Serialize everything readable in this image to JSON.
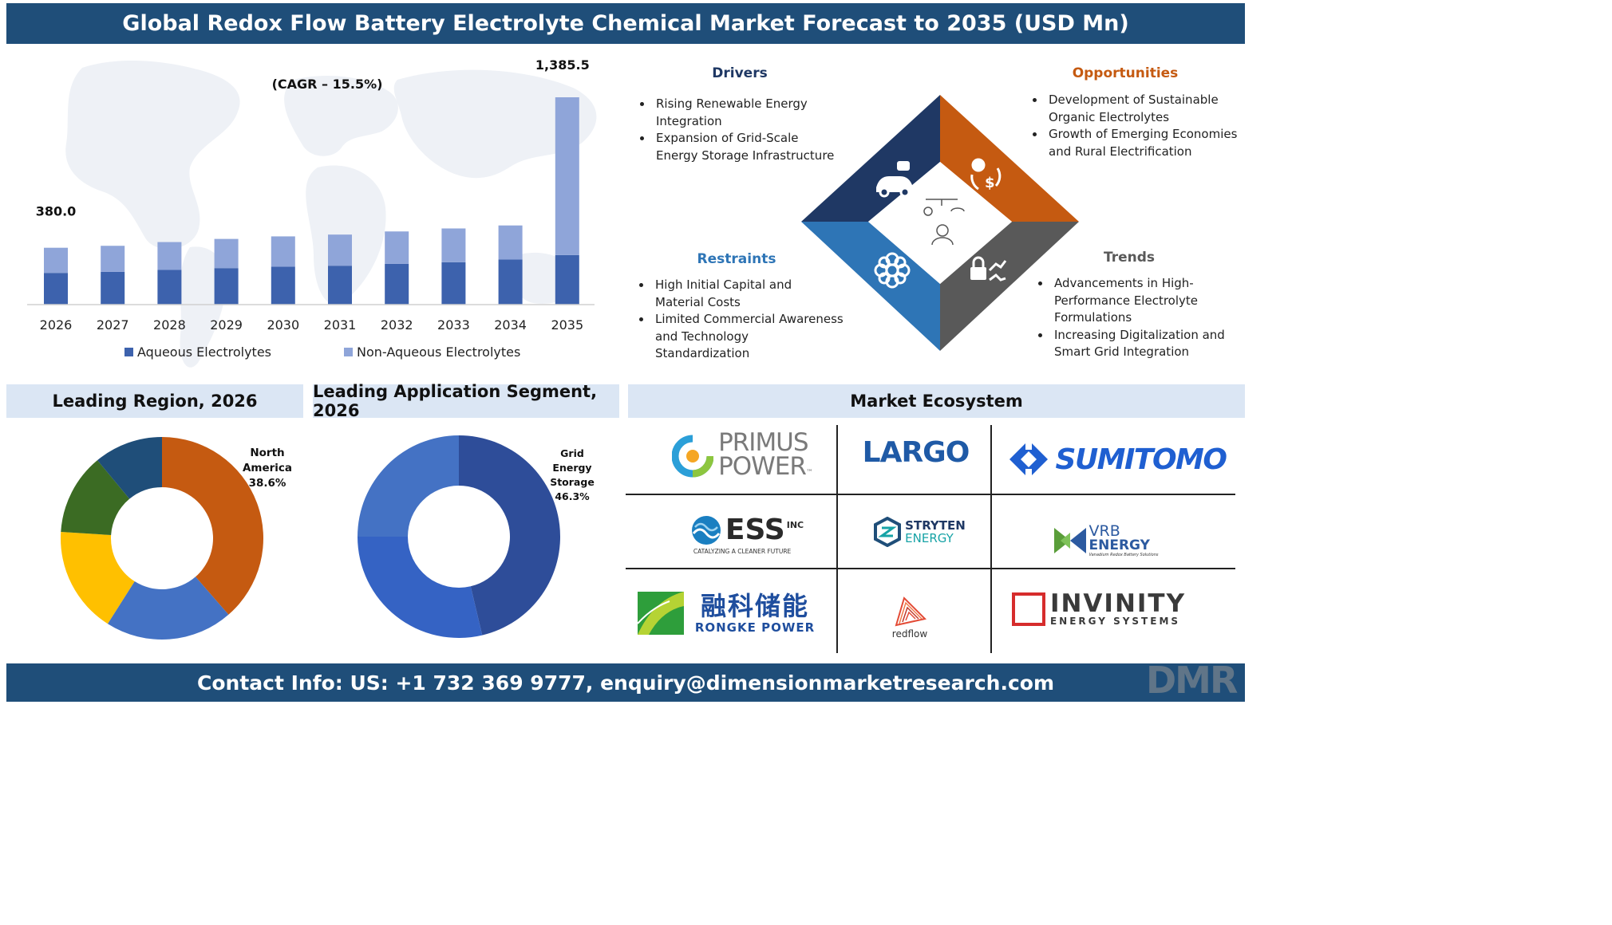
{
  "header": {
    "title": "Global Redox Flow Battery Electrolyte Chemical Market Forecast to 2035 (USD Mn)"
  },
  "chart_data": [
    {
      "type": "bar",
      "stacked": true,
      "categories": [
        "2026",
        "2027",
        "2028",
        "2029",
        "2030",
        "2031",
        "2032",
        "2033",
        "2034",
        "2035"
      ],
      "series": [
        {
          "name": "Aqueous Electrolytes",
          "color": "#3d62ad",
          "values": [
            212.0,
            219.0,
            232.0,
            244.0,
            253.0,
            260.0,
            272.0,
            283.0,
            301.0,
            331.0
          ]
        },
        {
          "name": "Non-Aqueous Electrolytes",
          "color": "#8fa5d9",
          "values": [
            168.0,
            174.0,
            186.0,
            195.0,
            203.0,
            208.0,
            217.0,
            226.0,
            228.0,
            1054.5
          ]
        }
      ],
      "annotations": {
        "first_total": "380.0",
        "last_total": "1,385.5",
        "cagr": "(CAGR – 15.5%)"
      },
      "legend": "bottom"
    },
    {
      "type": "pie",
      "variant": "donut",
      "title": "Leading Region, 2026",
      "slices": [
        {
          "label": "North America",
          "value": 38.6,
          "color": "#c55a11"
        },
        {
          "label": "",
          "value": 20.4,
          "color": "#4472c4"
        },
        {
          "label": "",
          "value": 17.0,
          "color": "#ffc000"
        },
        {
          "label": "",
          "value": 13.0,
          "color": "#3b6b23"
        },
        {
          "label": "",
          "value": 11.0,
          "color": "#1f4e79"
        }
      ],
      "callout": {
        "line1": "North",
        "line2": "America",
        "value": "38.6%"
      }
    },
    {
      "type": "pie",
      "variant": "donut",
      "title": "Leading Application Segment, 2026",
      "slices": [
        {
          "label": "Grid Energy Storage",
          "value": 46.3,
          "color": "#2e4d99"
        },
        {
          "label": "",
          "value": 28.7,
          "color": "#3563c4"
        },
        {
          "label": "",
          "value": 25.0,
          "color": "#4472c4"
        }
      ],
      "callout": {
        "line1": "Grid",
        "line2": "Energy",
        "line3": "Storage",
        "value": "46.3%"
      }
    }
  ],
  "panels": {
    "drivers": {
      "title": "Drivers",
      "color": "#1f3864",
      "items": [
        "Rising Renewable Energy Integration",
        "Expansion of Grid-Scale Energy Storage Infrastructure"
      ]
    },
    "opportunities": {
      "title": "Opportunities",
      "color": "#c55a11",
      "items": [
        "Development of Sustainable Organic Electrolytes",
        "Growth of Emerging Economies and Rural Electrification"
      ]
    },
    "restraints": {
      "title": "Restraints",
      "color": "#2e75b6",
      "items": [
        "High Initial Capital and Material Costs",
        "Limited Commercial Awareness and Technology Standardization"
      ]
    },
    "trends": {
      "title": "Trends",
      "color": "#595959",
      "items": [
        "Advancements in High-Performance Electrolyte Formulations",
        "Increasing Digitalization and Smart Grid Integration"
      ]
    },
    "diamond_icons": [
      "car-robot-icon",
      "idea-dollar-cycle-icon",
      "gear-flower-icon",
      "lock-trend-icon",
      "person-lamp-icon"
    ]
  },
  "sections": {
    "region": "Leading Region, 2026",
    "application": "Leading Application Segment, 2026",
    "ecosystem": "Market Ecosystem"
  },
  "ecosystem": {
    "primus": {
      "line1": "PRIMUS",
      "line2": "POWER",
      "tm": "™"
    },
    "largo": "LARGO",
    "sumitomo": "SUMITOMO",
    "ess": {
      "name": "ESS",
      "sup": "INC",
      "tagline": "CATALYZING A CLEANER FUTURE"
    },
    "stryten": {
      "line1": "STRYTEN",
      "line2": "ENERGY"
    },
    "vrb": {
      "line1": "VRB",
      "line2": "ENERGY",
      "tagline": "Vanadium Redox Battery Solutions"
    },
    "rongke": {
      "cn": "融科储能",
      "en": "RONGKE POWER"
    },
    "redflow": "redflow",
    "invinity": {
      "line1": "INVINITY",
      "line2": "ENERGY SYSTEMS"
    }
  },
  "footer": {
    "contact": "Contact Info: US: +1 732 369 9777, enquiry@dimensionmarketresearch.com"
  },
  "brand": {
    "watermark": "DMR"
  }
}
